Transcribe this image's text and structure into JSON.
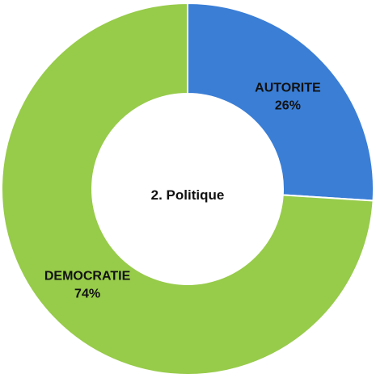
{
  "chart_data": {
    "type": "pie",
    "variant": "donut",
    "center_label": "2. Politique",
    "slices": [
      {
        "name": "AUTORITE",
        "value": 26,
        "value_label": "26%",
        "color": "#3a7ed6"
      },
      {
        "name": "DEMOCRATIE",
        "value": 74,
        "value_label": "74%",
        "color": "#97cb4a"
      }
    ]
  }
}
